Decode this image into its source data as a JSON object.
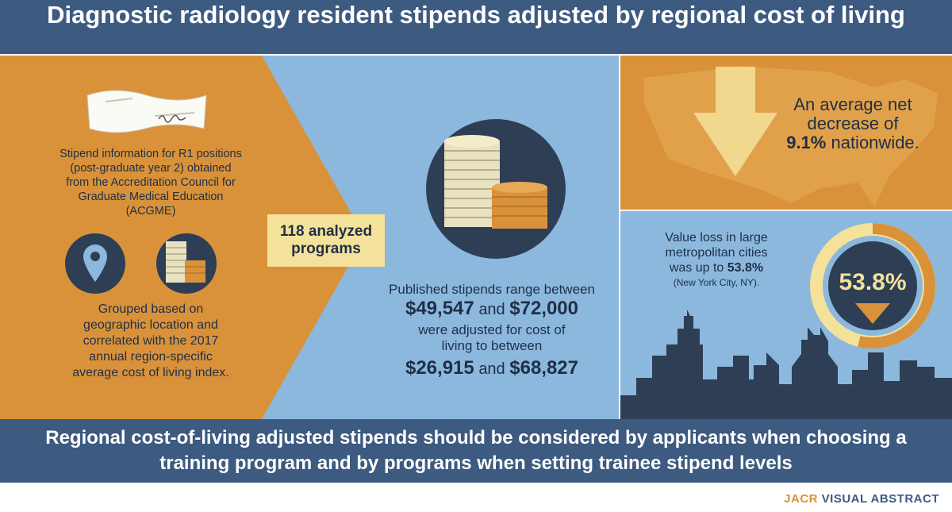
{
  "header": {
    "title": "Diagnostic radiology resident stipends adjusted by regional cost of living"
  },
  "left_panel": {
    "text_lines": [
      "Stipend information for R1 positions",
      "(post-graduate year 2) obtained",
      "from the Accreditation Council for",
      "Graduate Medical Education",
      "(ACGME)"
    ],
    "grouped_lines": [
      "Grouped based on",
      "geographic location and",
      "correlated with the 2017",
      "annual region-specific",
      "average cost of living index."
    ],
    "icons": [
      "check-document-icon",
      "location-pin-icon",
      "coin-stacks-icon"
    ]
  },
  "programs": {
    "line1": "118 analyzed",
    "line2": "programs"
  },
  "middle_panel": {
    "published_intro": "Published stipends range between",
    "published_min": "$49,547",
    "and": "and",
    "published_max": "$72,000",
    "adjusted_line1": "were adjusted for cost of",
    "adjusted_line2": "living to between",
    "adjusted_min": "$26,915",
    "adjusted_max": "$68,827"
  },
  "right_top": {
    "line1": "An average net",
    "line2": "decrease of",
    "percent": "9.1%",
    "line3_rest": " nationwide."
  },
  "right_bottom": {
    "line1": "Value loss in large",
    "line2": "metropolitan cities",
    "line3_prefix": "was up to ",
    "line3_value": "53.8%",
    "note": "(New York City, NY).",
    "ring_value": "53.8%",
    "ring_fraction": 0.538
  },
  "footer": {
    "conclusion_line1": "Regional cost-of-living adjusted stipends should be considered by applicants when choosing a",
    "conclusion_line2": "training program and by programs when setting trainee stipend levels"
  },
  "brand": {
    "part1": "JACR",
    "part2": " VISUAL ABSTRACT"
  },
  "colors": {
    "orange": "#d9923a",
    "navy": "#3d5a80",
    "light_blue": "#8cb8de",
    "cream": "#f4e19a",
    "dark_text": "#1f2f45"
  }
}
